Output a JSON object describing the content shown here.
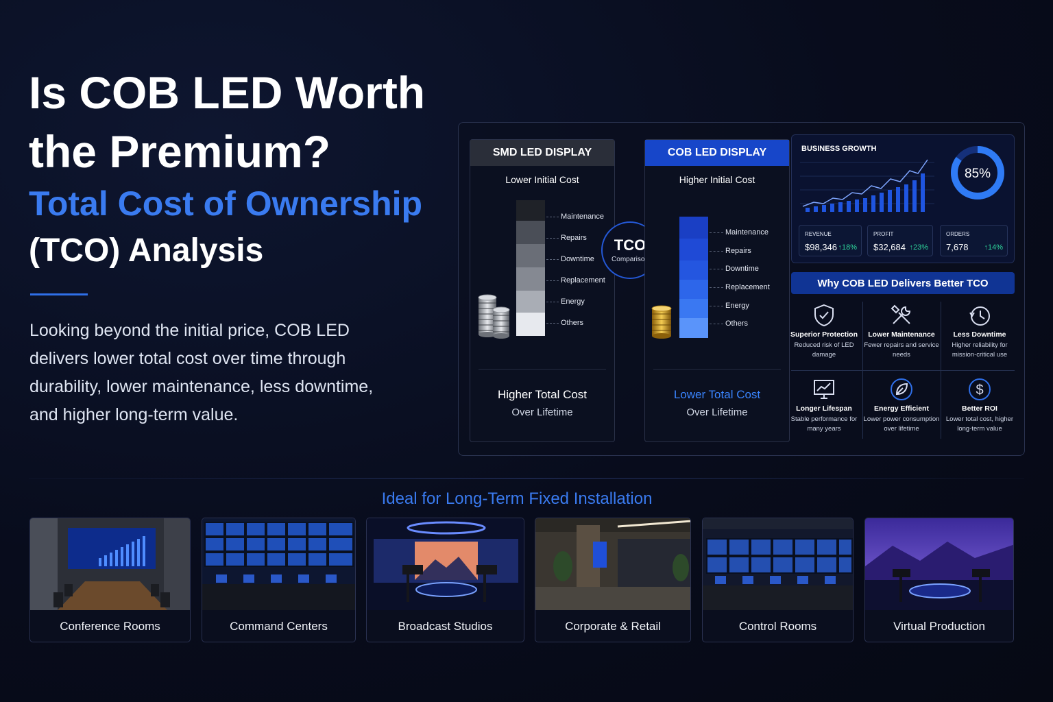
{
  "hero": {
    "title": "Is COB LED Worth the Premium?",
    "subtitle_blue": "Total Cost of Ownership",
    "subtitle_white": "(TCO) Analysis",
    "description": "Looking beyond the initial price, COB LED delivers lower total cost over time through durability, lower maintenance, less downtime, and higher long-term value."
  },
  "smd": {
    "header": "SMD LED DISPLAY",
    "initial": "Lower Initial Cost",
    "total": "Higher Total Cost",
    "over": "Over Lifetime",
    "segments": [
      "Maintenance",
      "Repairs",
      "Downtime",
      "Replacement",
      "Energy",
      "Others"
    ]
  },
  "cob": {
    "header": "COB LED DISPLAY",
    "initial": "Higher Initial Cost",
    "total": "Lower Total Cost",
    "over": "Over Lifetime",
    "segments": [
      "Maintenance",
      "Repairs",
      "Downtime",
      "Replacement",
      "Energy",
      "Others"
    ]
  },
  "tco": {
    "title": "TCO",
    "sub": "Comparison"
  },
  "business": {
    "title": "BUSINESS GROWTH",
    "ring_value": 0.85,
    "ring_label": "85%",
    "kpis": [
      {
        "label": "REVENUE",
        "value": "$98,346",
        "delta": "↑18%"
      },
      {
        "label": "PROFIT",
        "value": "$32,684",
        "delta": "↑23%"
      },
      {
        "label": "ORDERS",
        "value": "7,678",
        "delta": "↑14%"
      }
    ]
  },
  "why": {
    "title": "Why COB LED Delivers Better TCO",
    "items": [
      {
        "title": "Superior Protection",
        "desc": "Reduced risk of LED damage",
        "icon": "shield-check-icon"
      },
      {
        "title": "Lower Maintenance",
        "desc": "Fewer repairs and service needs",
        "icon": "tools-icon"
      },
      {
        "title": "Less Downtime",
        "desc": "Higher reliability for mission-critical use",
        "icon": "clock-icon"
      },
      {
        "title": "Longer Lifespan",
        "desc": "Stable performance for many years",
        "icon": "monitor-chart-icon"
      },
      {
        "title": "Energy Efficient",
        "desc": "Lower power consumption over lifetime",
        "icon": "leaf-icon"
      },
      {
        "title": "Better ROI",
        "desc": "Lower total cost, higher long-term value",
        "icon": "dollar-icon"
      }
    ]
  },
  "applications": {
    "title": "Ideal for Long-Term Fixed Installation",
    "items": [
      "Conference Rooms",
      "Command Centers",
      "Broadcast Studios",
      "Corporate & Retail",
      "Control Rooms",
      "Virtual Production"
    ]
  },
  "colors": {
    "accent": "#3a7bf0",
    "cob_header": "#1746c9",
    "positive": "#2ed39a"
  }
}
